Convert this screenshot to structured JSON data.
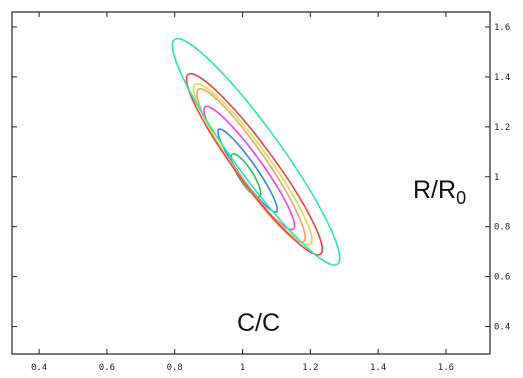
{
  "chart_data": {
    "type": "contour",
    "title": "",
    "xlabel": "C/C",
    "ylabel": "R/R",
    "ylabel_sub": "0",
    "xlim": [
      0.32,
      1.73
    ],
    "ylim": [
      0.29,
      1.66
    ],
    "x_ticks": [
      0.4,
      0.6,
      0.8,
      1.0,
      1.2,
      1.4,
      1.6
    ],
    "x_tick_labels": [
      "0.4",
      "0.6",
      "0.8",
      "1",
      "1.2",
      "1.4",
      "1.6"
    ],
    "y_ticks": [
      0.4,
      0.6,
      0.8,
      1.0,
      1.2,
      1.4,
      1.6
    ],
    "y_tick_labels": [
      "0.4",
      "0.6",
      "0.8",
      "1",
      "1.2",
      "1.4",
      "1.6"
    ],
    "y_axis_side": "right",
    "grid": false,
    "contour_center": [
      1.0,
      1.0
    ],
    "contour_levels": [
      {
        "color": "#22c55e",
        "top": [
          0.97,
          1.09
        ],
        "bottom": [
          1.05,
          0.92
        ]
      },
      {
        "color": "#3b82f6",
        "top": [
          0.93,
          1.19
        ],
        "bottom": [
          1.1,
          0.86
        ]
      },
      {
        "color": "#ee44ee",
        "top": [
          0.89,
          1.28
        ],
        "bottom": [
          1.15,
          0.79
        ]
      },
      {
        "color": "#f59e6b",
        "top": [
          0.87,
          1.35
        ],
        "bottom": [
          1.18,
          0.74
        ]
      },
      {
        "color": "#d4e24a",
        "top": [
          0.86,
          1.37
        ],
        "bottom": [
          1.2,
          0.73
        ]
      },
      {
        "color": "#ef4444",
        "top": [
          0.84,
          1.41
        ],
        "bottom": [
          1.23,
          0.69
        ]
      },
      {
        "color": "#2ee6b4",
        "top": [
          0.8,
          1.55
        ],
        "bottom": [
          1.28,
          0.65
        ]
      }
    ]
  }
}
